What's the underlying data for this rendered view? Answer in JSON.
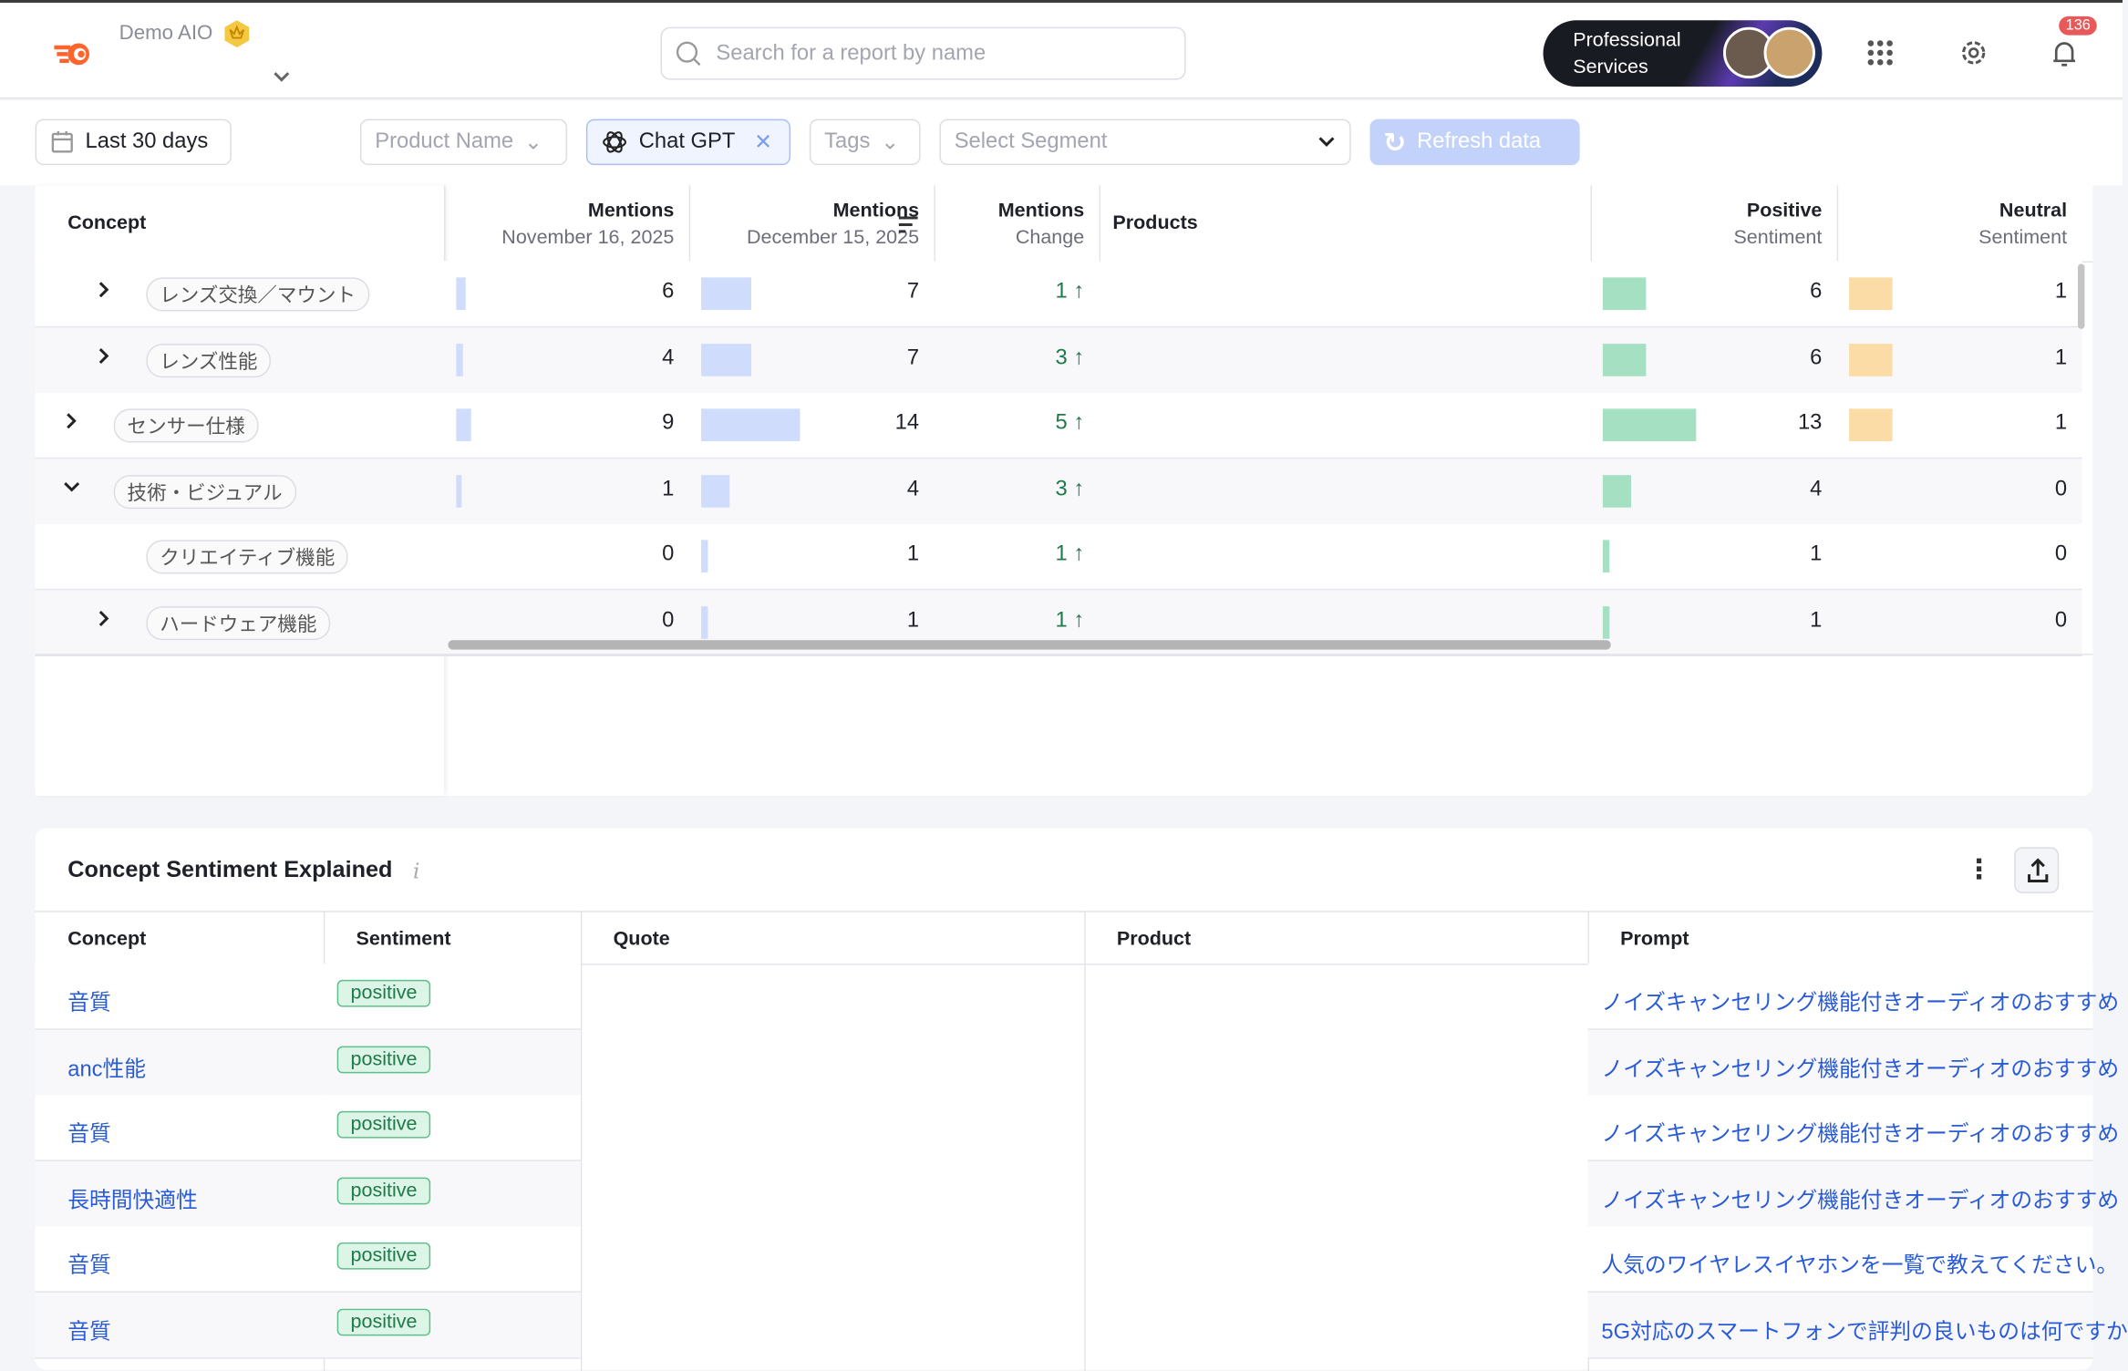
{
  "header": {
    "workspace": "Demo AIO",
    "search_placeholder": "Search for a report by name",
    "promo": [
      "Professional",
      "Services"
    ],
    "notifications": "136"
  },
  "filters": {
    "date": "Last 30 days",
    "product": "Product Name",
    "model": "Chat GPT",
    "tags": "Tags",
    "segment": "Select Segment",
    "refresh": "Refresh data"
  },
  "concept_table": {
    "headers": {
      "concept": "Concept",
      "nov": [
        "Mentions",
        "November 16, 2025"
      ],
      "dec": [
        "Mentions",
        "December 15, 2025"
      ],
      "change": [
        "Mentions",
        "Change"
      ],
      "products": "Products",
      "positive": [
        "Positive",
        "Sentiment"
      ],
      "neutral": [
        "Neutral",
        "Sentiment"
      ]
    },
    "rows": [
      {
        "concept": "レンズ交換／マウント",
        "expand": "collapsed",
        "indent": 1,
        "nov": 6,
        "dec": 7,
        "change": "1",
        "positive": 6,
        "neutral": 1
      },
      {
        "concept": "レンズ性能",
        "expand": "collapsed",
        "indent": 1,
        "nov": 4,
        "dec": 7,
        "change": "3",
        "positive": 6,
        "neutral": 1
      },
      {
        "concept": "センサー仕様",
        "expand": "collapsed",
        "indent": 0,
        "nov": 9,
        "dec": 14,
        "change": "5",
        "positive": 13,
        "neutral": 1
      },
      {
        "concept": "技術・ビジュアル",
        "expand": "expanded",
        "indent": 0,
        "nov": 1,
        "dec": 4,
        "change": "3",
        "positive": 4,
        "neutral": 0
      },
      {
        "concept": "クリエイティブ機能",
        "expand": "none",
        "indent": 1,
        "nov": 0,
        "dec": 1,
        "change": "1",
        "positive": 1,
        "neutral": 0
      },
      {
        "concept": "ハードウェア機能",
        "expand": "collapsed",
        "indent": 1,
        "nov": 0,
        "dec": 1,
        "change": "1",
        "positive": 1,
        "neutral": 0
      }
    ],
    "colors": {
      "mentions": "#cfdcfb",
      "positive": "#a5e0c3",
      "neutral": "#fbdca6",
      "change": "#1f7a4a"
    }
  },
  "explained": {
    "title": "Concept Sentiment Explained",
    "headers": [
      "Concept",
      "Sentiment",
      "Quote",
      "Product",
      "Prompt"
    ],
    "rows": [
      {
        "concept": "音質",
        "sentiment": "positive",
        "prompt": "ノイズキャンセリング機能付きオーディオのおすすめ"
      },
      {
        "concept": "anc性能",
        "sentiment": "positive",
        "prompt": "ノイズキャンセリング機能付きオーディオのおすすめ"
      },
      {
        "concept": "音質",
        "sentiment": "positive",
        "prompt": "ノイズキャンセリング機能付きオーディオのおすすめ"
      },
      {
        "concept": "長時間快適性",
        "sentiment": "positive",
        "prompt": "ノイズキャンセリング機能付きオーディオのおすすめ"
      },
      {
        "concept": "音質",
        "sentiment": "positive",
        "prompt": "人気のワイヤレスイヤホンを一覧で教えてください。"
      },
      {
        "concept": "音質",
        "sentiment": "positive",
        "prompt": "5G対応のスマートフォンで評判の良いものは何ですか"
      }
    ]
  }
}
